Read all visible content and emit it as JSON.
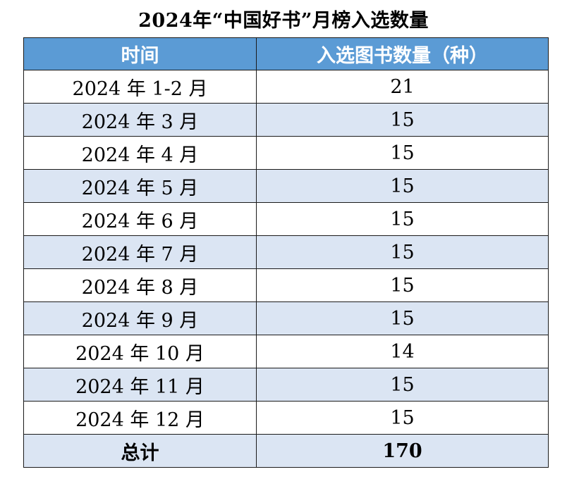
{
  "title": "2024年“中国好书”月榜入选数量",
  "table": {
    "headers": [
      "时间",
      "入选图书数量（种）"
    ],
    "rows": [
      {
        "period": "2024 年 1-2 月",
        "count": "21"
      },
      {
        "period": "2024 年 3 月",
        "count": "15"
      },
      {
        "period": "2024 年 4 月",
        "count": "15"
      },
      {
        "period": "2024 年 5 月",
        "count": "15"
      },
      {
        "period": "2024 年 6 月",
        "count": "15"
      },
      {
        "period": "2024 年 7 月",
        "count": "15"
      },
      {
        "period": "2024 年 8 月",
        "count": "15"
      },
      {
        "period": "2024 年 9 月",
        "count": "15"
      },
      {
        "period": "2024 年 10 月",
        "count": "14"
      },
      {
        "period": "2024 年 11 月",
        "count": "15"
      },
      {
        "period": "2024 年 12 月",
        "count": "15"
      }
    ],
    "total": {
      "label": "总计",
      "count": "170"
    }
  },
  "colors": {
    "header_background": "#5b9bd5",
    "header_text": "#ffffff",
    "stripe_background": "#dbe5f3",
    "border": "#1a1a1a"
  }
}
